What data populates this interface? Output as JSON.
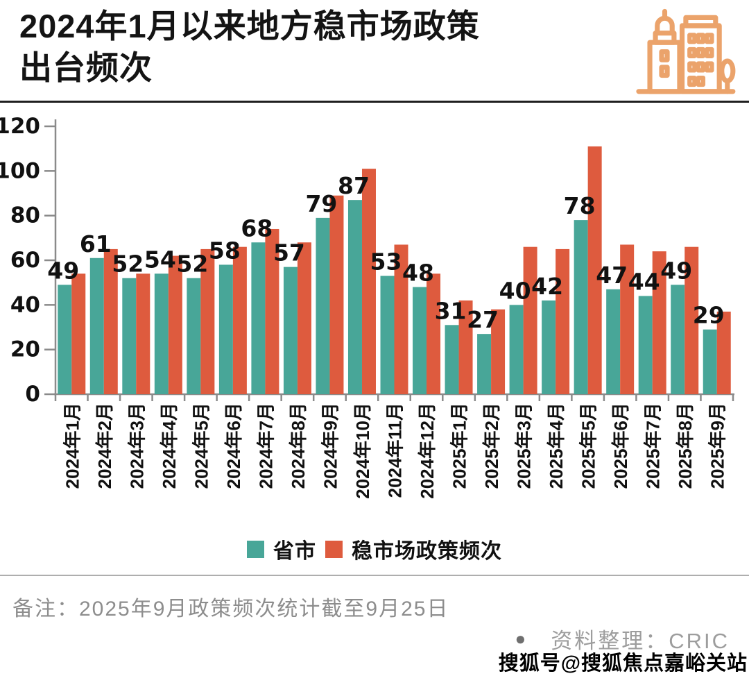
{
  "header": {
    "title_line1": "2024年1月以来地方稳市场政策",
    "title_line2": "出台频次",
    "icon": "city-buildings-icon",
    "icon_color": "#EBA36B"
  },
  "chart_data": {
    "type": "bar",
    "title": "2024年1月以来地方稳市场政策出台频次",
    "categories": [
      "2024年1月",
      "2024年2月",
      "2024年3月",
      "2024年4月",
      "2024年5月",
      "2024年6月",
      "2024年7月",
      "2024年8月",
      "2024年9月",
      "2024年10月",
      "2024年11月",
      "2024年12月",
      "2025年1月",
      "2025年2月",
      "2025年3月",
      "2025年4月",
      "2025年5月",
      "2025年6月",
      "2025年7月",
      "2025年8月",
      "2025年9月"
    ],
    "series": [
      {
        "name": "省市",
        "color": "#48A698",
        "values": [
          49,
          61,
          52,
          54,
          52,
          58,
          68,
          57,
          79,
          87,
          53,
          48,
          31,
          27,
          40,
          42,
          78,
          47,
          44,
          49,
          29
        ]
      },
      {
        "name": "稳市场政策频次",
        "color": "#DE5B3E",
        "values": [
          54,
          65,
          54,
          62,
          65,
          66,
          74,
          68,
          89,
          101,
          67,
          54,
          42,
          38,
          66,
          65,
          111,
          67,
          64,
          66,
          37
        ]
      }
    ],
    "bar_labels_from_series": "省市",
    "xlabel": "",
    "ylabel": "",
    "ylim": [
      0,
      120
    ],
    "yticks": [
      0,
      20,
      40,
      60,
      80,
      100,
      120
    ],
    "grid": false,
    "legend_position": "bottom",
    "axis_color": "#8a8a8a",
    "label_color": "#111111"
  },
  "footer": {
    "note": "备注：2025年9月政策频次统计截至9月25日",
    "source_bullet": "●",
    "source_label": "资料整理：CRIC",
    "watermark": "搜狐号@搜狐焦点嘉峪关站"
  }
}
